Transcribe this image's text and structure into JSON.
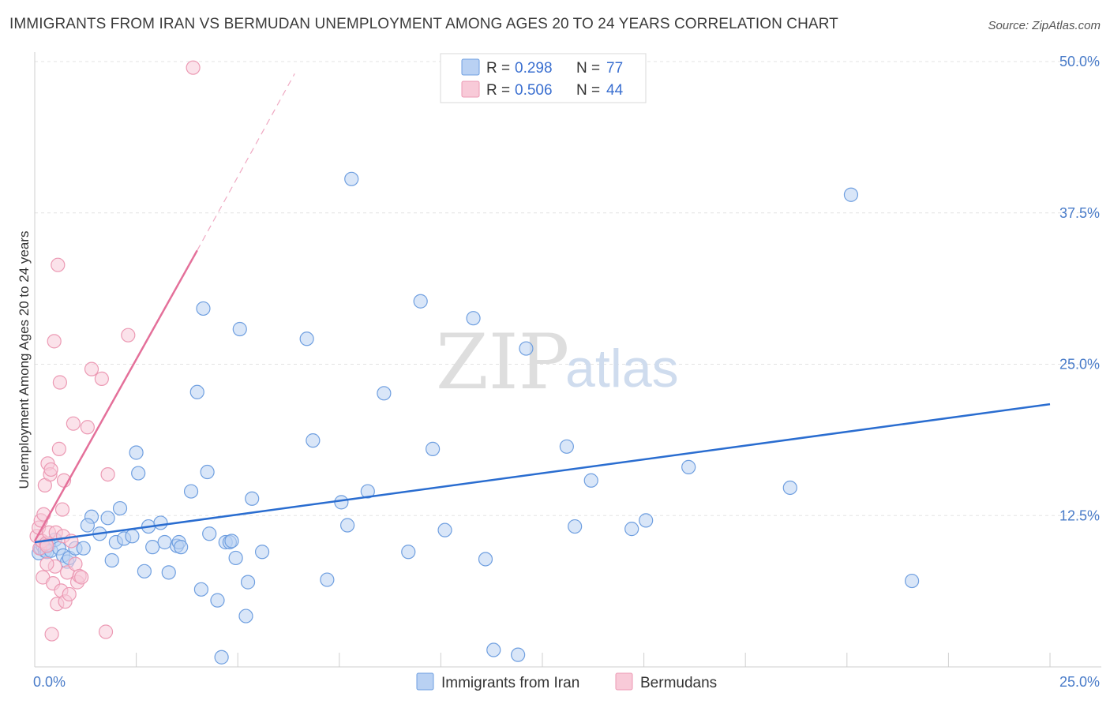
{
  "header": {
    "title": "IMMIGRANTS FROM IRAN VS BERMUDAN UNEMPLOYMENT AMONG AGES 20 TO 24 YEARS CORRELATION CHART",
    "source": "Source: ZipAtlas.com"
  },
  "watermark": {
    "zip": "ZIP",
    "atlas": "atlas"
  },
  "legend": {
    "rows": [
      {
        "r_label": "R =",
        "r_value": "0.298",
        "n_label": "N =",
        "n_value": "77",
        "color": "#a9c6ef"
      },
      {
        "r_label": "R =",
        "r_value": "0.506",
        "n_label": "N =",
        "n_value": "44",
        "color": "#f5b5c8"
      }
    ]
  },
  "bottom_legend": [
    {
      "label": "Immigrants from Iran",
      "color": "#a9c6ef"
    },
    {
      "label": "Bermudans",
      "color": "#f5b5c8"
    }
  ],
  "chart_data": {
    "type": "scatter",
    "title": "IMMIGRANTS FROM IRAN VS BERMUDAN UNEMPLOYMENT AMONG AGES 20 TO 24 YEARS CORRELATION CHART",
    "xlabel": "",
    "ylabel": "Unemployment Among Ages 20 to 24 years",
    "xlim": [
      0,
      25
    ],
    "ylim": [
      0,
      50
    ],
    "x_tick_labels": [
      {
        "value": 0,
        "label": "0.0%"
      },
      {
        "value": 25,
        "label": "25.0%"
      }
    ],
    "y_tick_labels": [
      {
        "value": 12.5,
        "label": "12.5%"
      },
      {
        "value": 25,
        "label": "25.0%"
      },
      {
        "value": 37.5,
        "label": "37.5%"
      },
      {
        "value": 50,
        "label": "50.0%"
      }
    ],
    "grid": true,
    "colors": {
      "iran": "#6f9fe0",
      "iran_fill": "#b9d1f3",
      "iran_line": "#2a6dd0",
      "bermuda": "#ec9ab4",
      "bermuda_fill": "#f8cad8",
      "bermuda_line": "#e4709a"
    },
    "series": [
      {
        "name": "Immigrants from Iran",
        "points": [
          [
            0.1,
            9.4
          ],
          [
            0.15,
            9.8
          ],
          [
            0.2,
            10.0
          ],
          [
            0.25,
            9.6
          ],
          [
            0.3,
            9.5
          ],
          [
            0.35,
            10.1
          ],
          [
            0.4,
            9.6
          ],
          [
            0.5,
            10.5
          ],
          [
            0.6,
            9.8
          ],
          [
            0.7,
            9.2
          ],
          [
            0.8,
            8.7
          ],
          [
            0.85,
            9.0
          ],
          [
            1.0,
            9.8
          ],
          [
            1.2,
            9.8
          ],
          [
            1.4,
            12.4
          ],
          [
            1.3,
            11.7
          ],
          [
            1.6,
            11.0
          ],
          [
            1.8,
            12.3
          ],
          [
            1.9,
            8.8
          ],
          [
            2.0,
            10.3
          ],
          [
            2.1,
            13.1
          ],
          [
            2.2,
            10.6
          ],
          [
            2.4,
            10.8
          ],
          [
            2.5,
            17.7
          ],
          [
            2.55,
            16.0
          ],
          [
            2.7,
            7.9
          ],
          [
            2.8,
            11.6
          ],
          [
            2.9,
            9.9
          ],
          [
            3.1,
            11.9
          ],
          [
            3.2,
            10.3
          ],
          [
            3.3,
            7.8
          ],
          [
            3.5,
            10.0
          ],
          [
            3.55,
            10.3
          ],
          [
            3.6,
            9.9
          ],
          [
            3.85,
            14.5
          ],
          [
            4.0,
            22.7
          ],
          [
            4.1,
            6.4
          ],
          [
            4.15,
            29.6
          ],
          [
            4.25,
            16.1
          ],
          [
            4.3,
            11.0
          ],
          [
            4.5,
            5.5
          ],
          [
            4.6,
            0.8
          ],
          [
            4.7,
            10.3
          ],
          [
            4.8,
            10.3
          ],
          [
            4.85,
            10.4
          ],
          [
            4.95,
            9.0
          ],
          [
            5.05,
            27.9
          ],
          [
            5.2,
            4.2
          ],
          [
            5.25,
            7.0
          ],
          [
            5.35,
            13.9
          ],
          [
            5.6,
            9.5
          ],
          [
            6.7,
            27.1
          ],
          [
            6.85,
            18.7
          ],
          [
            7.2,
            7.2
          ],
          [
            7.55,
            13.6
          ],
          [
            7.7,
            11.7
          ],
          [
            7.8,
            40.3
          ],
          [
            8.2,
            14.5
          ],
          [
            8.6,
            22.6
          ],
          [
            9.2,
            9.5
          ],
          [
            9.5,
            30.2
          ],
          [
            9.8,
            18.0
          ],
          [
            10.1,
            11.3
          ],
          [
            10.8,
            28.8
          ],
          [
            11.1,
            8.9
          ],
          [
            11.3,
            1.4
          ],
          [
            11.9,
            1.0
          ],
          [
            12.1,
            26.3
          ],
          [
            13.1,
            18.2
          ],
          [
            13.3,
            11.6
          ],
          [
            13.7,
            15.4
          ],
          [
            14.7,
            11.4
          ],
          [
            15.05,
            12.1
          ],
          [
            16.1,
            16.5
          ],
          [
            18.6,
            14.8
          ],
          [
            20.1,
            39.0
          ],
          [
            21.6,
            7.1
          ]
        ]
      },
      {
        "name": "Bermudans",
        "points": [
          [
            0.05,
            10.8
          ],
          [
            0.1,
            11.5
          ],
          [
            0.12,
            9.8
          ],
          [
            0.15,
            12.1
          ],
          [
            0.18,
            10.4
          ],
          [
            0.2,
            7.4
          ],
          [
            0.22,
            12.6
          ],
          [
            0.25,
            15.0
          ],
          [
            0.28,
            10.2
          ],
          [
            0.3,
            10.0
          ],
          [
            0.32,
            16.8
          ],
          [
            0.35,
            11.1
          ],
          [
            0.38,
            15.9
          ],
          [
            0.4,
            16.3
          ],
          [
            0.42,
            2.7
          ],
          [
            0.45,
            6.9
          ],
          [
            0.48,
            26.9
          ],
          [
            0.5,
            8.3
          ],
          [
            0.52,
            11.1
          ],
          [
            0.55,
            5.2
          ],
          [
            0.57,
            33.2
          ],
          [
            0.6,
            18.0
          ],
          [
            0.62,
            23.5
          ],
          [
            0.65,
            6.3
          ],
          [
            0.68,
            13.0
          ],
          [
            0.7,
            10.8
          ],
          [
            0.72,
            15.4
          ],
          [
            0.75,
            5.4
          ],
          [
            0.8,
            7.8
          ],
          [
            0.85,
            6.0
          ],
          [
            0.9,
            10.4
          ],
          [
            0.95,
            20.1
          ],
          [
            1.0,
            8.5
          ],
          [
            1.05,
            7.0
          ],
          [
            1.1,
            7.5
          ],
          [
            1.15,
            7.4
          ],
          [
            1.3,
            19.8
          ],
          [
            1.4,
            24.6
          ],
          [
            1.65,
            23.8
          ],
          [
            1.75,
            2.9
          ],
          [
            1.8,
            15.9
          ],
          [
            2.3,
            27.4
          ],
          [
            3.9,
            49.5
          ],
          [
            0.3,
            8.5
          ]
        ]
      }
    ],
    "trend_lines": [
      {
        "series": "Immigrants from Iran",
        "x": [
          0,
          25
        ],
        "y": [
          10.3,
          21.7
        ],
        "style": "solid"
      },
      {
        "series": "Bermudans",
        "x": [
          0,
          4.0
        ],
        "y": [
          10.4,
          34.4
        ],
        "style": "solid"
      },
      {
        "series": "Bermudans",
        "x": [
          4.0,
          6.4
        ],
        "y": [
          34.4,
          49.0
        ],
        "style": "dashed"
      }
    ]
  }
}
